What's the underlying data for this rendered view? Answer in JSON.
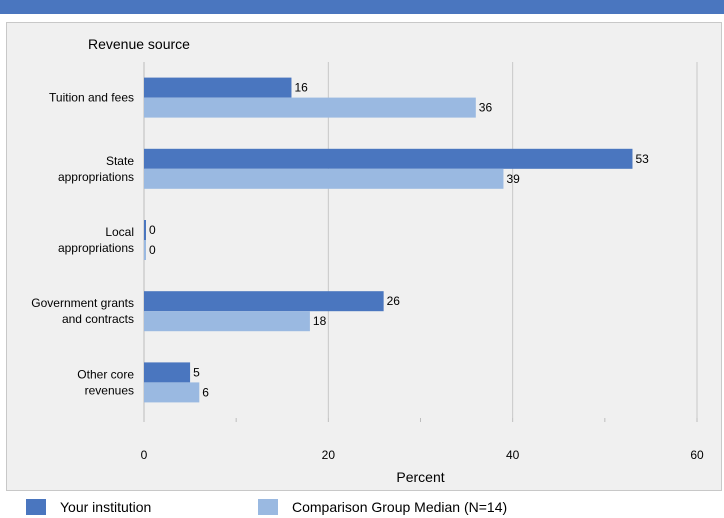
{
  "colors": {
    "top_bar": "#4a76bf",
    "your_institution": "#4a76bf",
    "comparison": "#9ab9e1",
    "panel_bg": "#f0f0f0"
  },
  "legend": {
    "items": [
      {
        "label": "Your institution",
        "color": "#4a76bf"
      },
      {
        "label": "Comparison Group Median (N=14)",
        "color": "#9ab9e1"
      }
    ]
  },
  "chart_data": {
    "type": "bar",
    "orientation": "horizontal",
    "title": "",
    "category_axis_title": "Revenue source",
    "xlabel": "Percent",
    "xlim": [
      0,
      60
    ],
    "xticks": [
      0,
      20,
      40,
      60
    ],
    "grid": true,
    "legend_position": "bottom",
    "categories": [
      [
        "Tuition and fees"
      ],
      [
        "State",
        "appropriations"
      ],
      [
        "Local",
        "appropriations"
      ],
      [
        "Government grants",
        "and contracts"
      ],
      [
        "Other core",
        "revenues"
      ]
    ],
    "series": [
      {
        "name": "Your institution",
        "color": "#4a76bf",
        "values": [
          16,
          53,
          0,
          26,
          5
        ]
      },
      {
        "name": "Comparison Group Median (N=14)",
        "color": "#9ab9e1",
        "values": [
          36,
          39,
          0,
          18,
          6
        ]
      }
    ]
  }
}
